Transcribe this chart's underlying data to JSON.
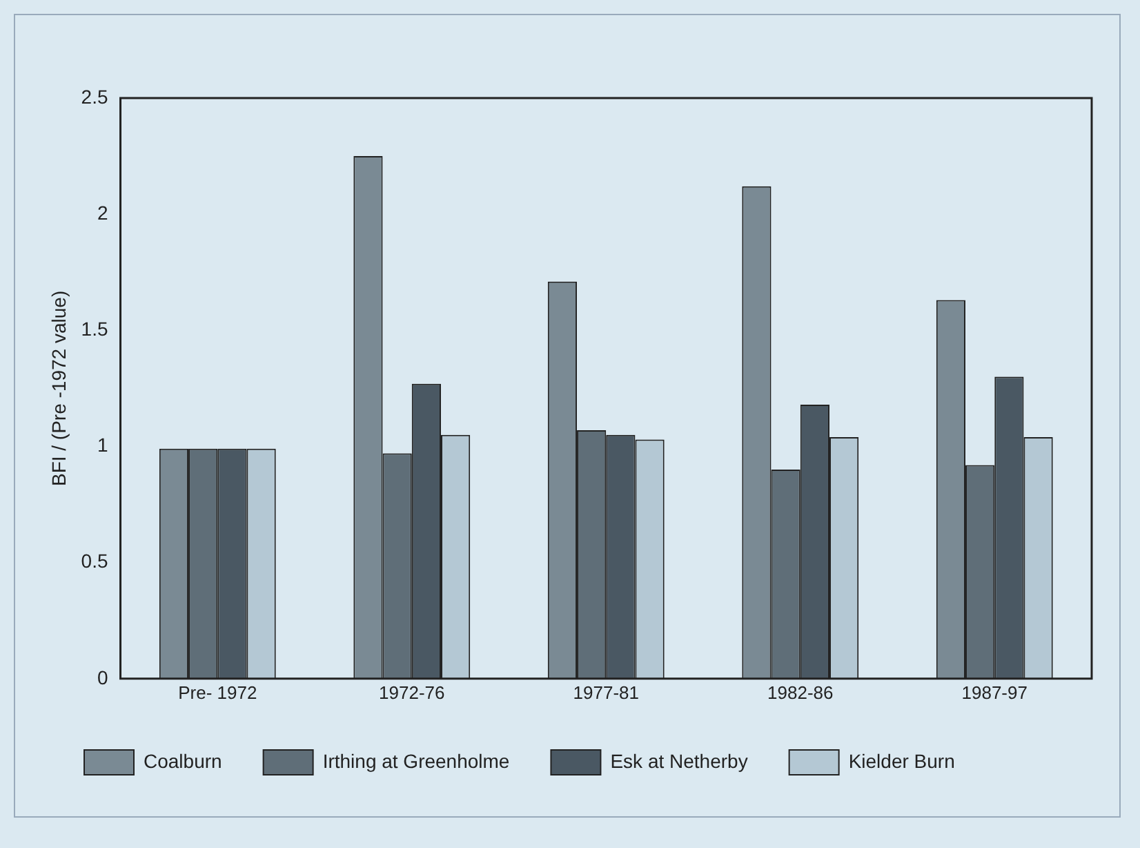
{
  "chart_data": {
    "type": "bar",
    "ylabel": "BFI / (Pre -1972 value)",
    "categories": [
      "Pre- 1972",
      "1972-76",
      "1977-81",
      "1982-86",
      "1987-97"
    ],
    "series": [
      {
        "name": "Coalburn",
        "color": "#7a8a94",
        "values": [
          0.99,
          2.25,
          1.71,
          2.12,
          1.63
        ]
      },
      {
        "name": "Irthing at Greenholme",
        "color": "#5f6e78",
        "values": [
          0.99,
          0.97,
          1.07,
          0.9,
          0.92
        ]
      },
      {
        "name": "Esk at Netherby",
        "color": "#4a5863",
        "values": [
          0.99,
          1.27,
          1.05,
          1.18,
          1.3
        ]
      },
      {
        "name": "Kielder Burn",
        "color": "#b4c8d4",
        "values": [
          0.99,
          1.05,
          1.03,
          1.04,
          1.04
        ]
      }
    ],
    "ylim": [
      0,
      2.5
    ],
    "yticks": [
      0,
      0.5,
      1,
      1.5,
      2,
      2.5
    ],
    "grid": false,
    "legend": "bottom"
  }
}
